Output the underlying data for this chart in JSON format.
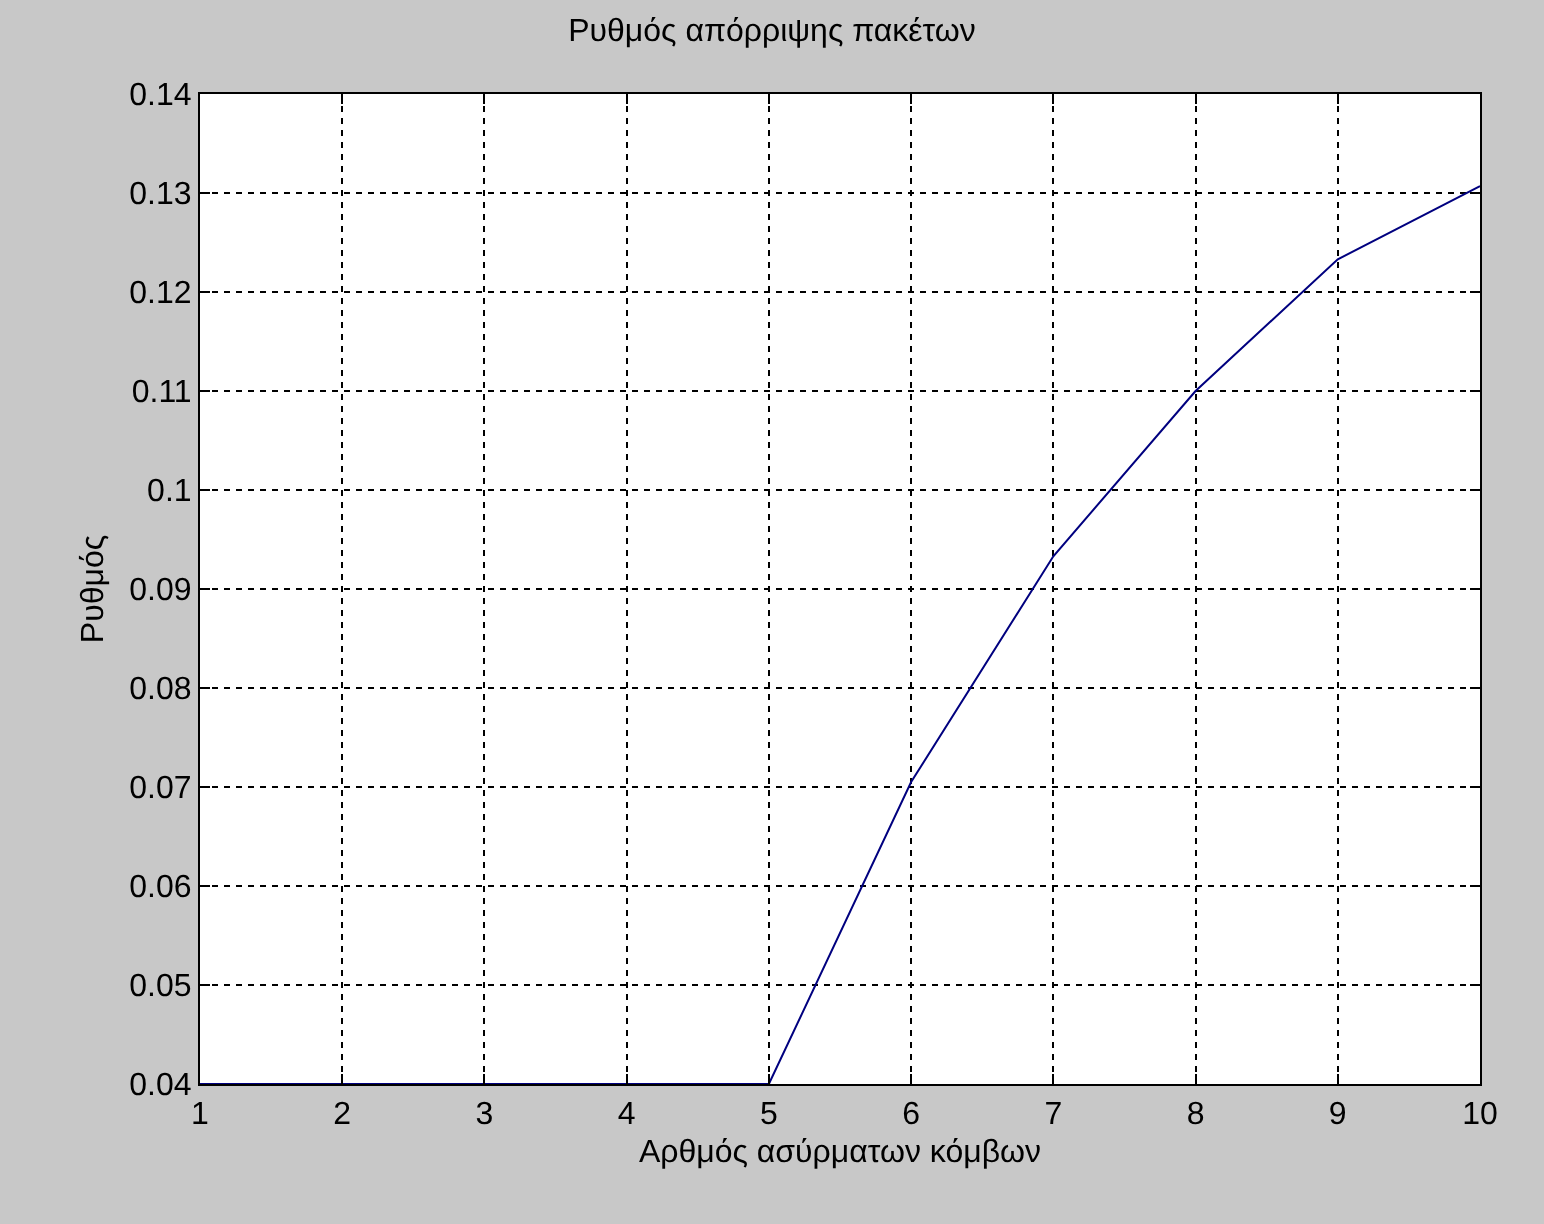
{
  "chart_data": {
    "type": "line",
    "title": "Ρυθμός απόρριψης πακέτων",
    "xlabel": "Αρθμός ασύρματων κόμβων",
    "ylabel": "Ρυθμός",
    "x": [
      1,
      2,
      3,
      4,
      5,
      6,
      7,
      8,
      9,
      10
    ],
    "series": [
      {
        "color": "#00007f",
        "values": [
          0.04,
          0.04,
          0.04,
          0.04,
          0.04,
          0.0705,
          0.0933,
          0.11,
          0.1233,
          0.1307
        ]
      }
    ],
    "xlim": [
      1,
      10
    ],
    "xticks": [
      1,
      2,
      3,
      4,
      5,
      6,
      7,
      8,
      9,
      10
    ],
    "ylim": [
      0.04,
      0.14
    ],
    "yticks": [
      0.04,
      0.05,
      0.06,
      0.07,
      0.08,
      0.09,
      0.1,
      0.11,
      0.12,
      0.13,
      0.14
    ],
    "grid": true,
    "marker": "none",
    "line_style": "solid"
  }
}
